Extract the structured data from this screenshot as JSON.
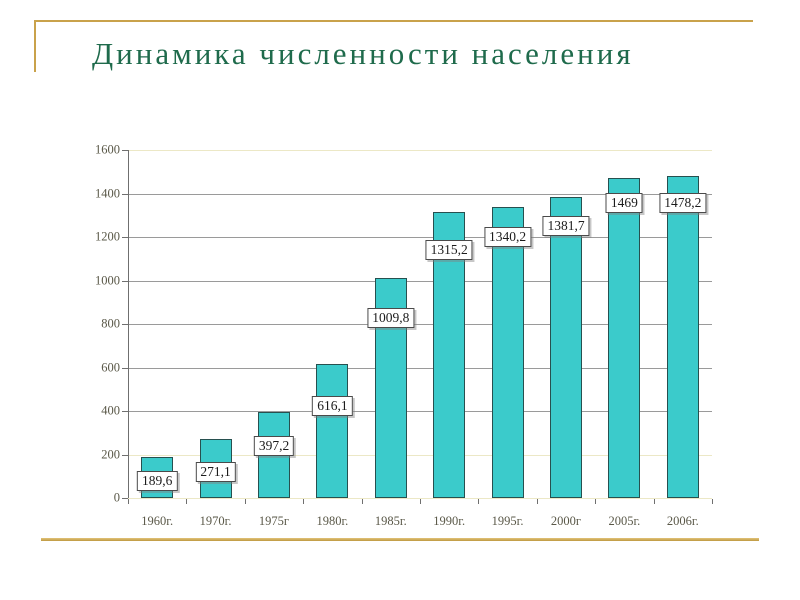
{
  "slide": {
    "title": "Динамика численности населения",
    "title_color": "#1F6B4C",
    "accent_gold": "#C9A24B",
    "accent_gold_light": "#E2C379",
    "accent_gold_dark": "#BE9940"
  },
  "chart_data": {
    "type": "bar",
    "title": "",
    "xlabel": "",
    "ylabel": "",
    "categories": [
      "1960г.",
      "1970г.",
      "1975г",
      "1980г.",
      "1985г.",
      "1990г.",
      "1995г.",
      "2000г",
      "2005г.",
      "2006г."
    ],
    "values": [
      189.6,
      271.1,
      397.2,
      616.1,
      1009.8,
      1315.2,
      1340.2,
      1381.7,
      1469,
      1478.2
    ],
    "value_labels": [
      "189,6",
      "271,1",
      "397,2",
      "616,1",
      "1009,8",
      "1315,2",
      "1340,2",
      "1381,7",
      "1469",
      "1478,2"
    ],
    "ylim": [
      0,
      1600
    ],
    "ytick_step": 200,
    "ytick_labels": [
      "0",
      "200",
      "400",
      "600",
      "800",
      "1000",
      "1200",
      "1400",
      "1600"
    ],
    "grid": true,
    "legend_position": "none",
    "bar_color": "#3BCBCB",
    "bar_border_color": "#27504f",
    "gridline_color": "#9a9a9a",
    "pale_gridline_color": "#ece8c6",
    "pale_gridline_values": [
      0,
      200,
      1600
    ]
  }
}
